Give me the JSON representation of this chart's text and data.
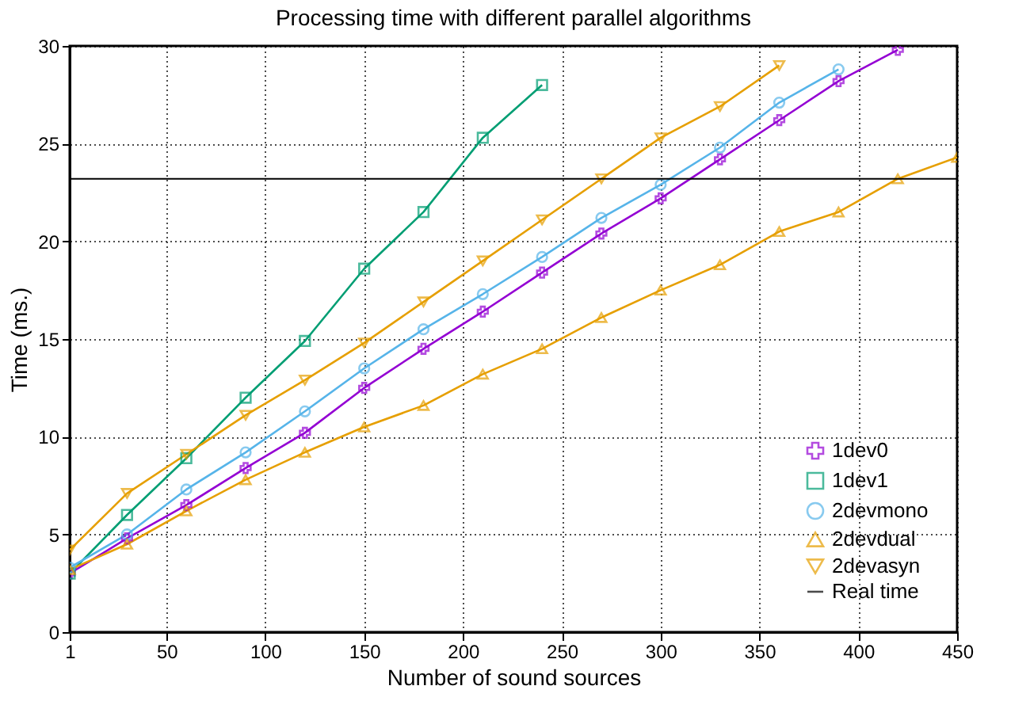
{
  "chart_data": {
    "type": "line",
    "title": "Processing time with different parallel algorithms",
    "xlabel": "Number of sound sources",
    "ylabel": "Time (ms.)",
    "x": [
      1,
      30,
      60,
      90,
      120,
      150,
      180,
      210,
      240,
      270,
      300,
      330,
      360,
      390,
      420,
      450
    ],
    "series": [
      {
        "name": "1dev0",
        "color": "#9400d3",
        "marker": "cross",
        "values": [
          3.0,
          4.8,
          6.5,
          8.4,
          10.2,
          12.5,
          14.5,
          16.4,
          18.4,
          20.4,
          22.2,
          24.2,
          26.2,
          28.2,
          29.8,
          null
        ]
      },
      {
        "name": "1dev1",
        "color": "#009e73",
        "marker": "square",
        "values": [
          3.0,
          6.0,
          8.9,
          12.0,
          14.9,
          18.6,
          21.5,
          25.3,
          28.0,
          null,
          null,
          null,
          null,
          null,
          null,
          null
        ]
      },
      {
        "name": "2devmono",
        "color": "#56b4e9",
        "marker": "circle",
        "values": [
          3.3,
          5.0,
          7.3,
          9.2,
          11.3,
          13.5,
          15.5,
          17.3,
          19.2,
          21.2,
          22.9,
          24.8,
          27.1,
          28.8,
          null,
          null
        ]
      },
      {
        "name": "2devdual",
        "color": "#e69f00",
        "marker": "triangle",
        "values": [
          3.2,
          4.5,
          6.2,
          7.8,
          9.2,
          10.5,
          11.6,
          13.2,
          14.5,
          16.1,
          17.5,
          18.8,
          20.5,
          21.5,
          23.2,
          24.3
        ]
      },
      {
        "name": "2devasyn",
        "color": "#e69f00",
        "marker": "triangle-down",
        "values": [
          4.2,
          7.1,
          9.1,
          11.1,
          12.9,
          14.8,
          16.9,
          19.0,
          21.1,
          23.2,
          25.3,
          26.9,
          29.0,
          null,
          null,
          null
        ]
      }
    ],
    "ref_lines": [
      {
        "axis": "y",
        "value": 23.2,
        "label": "Real time",
        "color": "#000000"
      }
    ],
    "xlim": [
      1,
      450
    ],
    "xticks": [
      1,
      50,
      100,
      150,
      200,
      250,
      300,
      350,
      400,
      450
    ],
    "ylim": [
      0,
      30
    ],
    "yticks": [
      0,
      5,
      10,
      15,
      20,
      25,
      30
    ],
    "grid": true,
    "legend": "bottom right",
    "line_style": "solid"
  }
}
